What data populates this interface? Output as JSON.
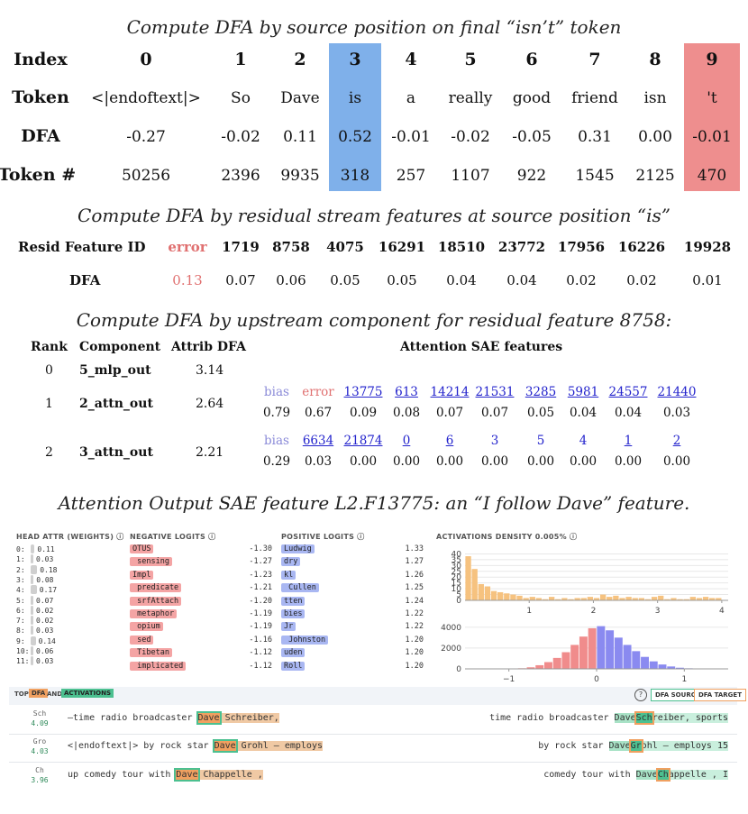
{
  "section1": {
    "caption": "Compute DFA by source position on final “isn’t” token",
    "row_labels": [
      "Index",
      "Token",
      "DFA",
      "Token #"
    ],
    "indices": [
      "0",
      "1",
      "2",
      "3",
      "4",
      "5",
      "6",
      "7",
      "8",
      "9"
    ],
    "tokens": [
      "<|endoftext|>",
      "So",
      "Dave",
      "is",
      "a",
      "really",
      "good",
      "friend",
      "isn",
      "'t"
    ],
    "dfa": [
      "-0.27",
      "-0.02",
      "0.11",
      "0.52",
      "-0.01",
      "-0.02",
      "-0.05",
      "0.31",
      "0.00",
      "-0.01"
    ],
    "token_ids": [
      "50256",
      "2396",
      "9935",
      "318",
      "257",
      "1107",
      "922",
      "1545",
      "2125",
      "470"
    ],
    "source_color": "#7fb0ea",
    "target_color": "#ee8e8e"
  },
  "section2": {
    "caption": "Compute DFA by residual stream features at source position “is”",
    "row1_label": "Resid Feature ID",
    "row2_label": "DFA",
    "feature_ids": [
      "error",
      "1719",
      "8758",
      "4075",
      "16291",
      "18510",
      "23772",
      "17956",
      "16226",
      "19928"
    ],
    "dfa": [
      "0.13",
      "0.07",
      "0.06",
      "0.05",
      "0.05",
      "0.04",
      "0.04",
      "0.02",
      "0.02",
      "0.01"
    ],
    "error_color": "#e07070"
  },
  "section3": {
    "caption": "Compute DFA by upstream component for residual feature 8758:",
    "headers": {
      "rank": "Rank",
      "component": "Component",
      "attrib": "Attrib DFA",
      "sae": "Attention SAE features"
    },
    "rows": [
      {
        "rank": "0",
        "component": "5_mlp_out",
        "attrib": "3.14"
      },
      {
        "rank": "1",
        "component": "2_attn_out",
        "attrib": "2.64"
      },
      {
        "rank": "2",
        "component": "3_attn_out",
        "attrib": "2.21"
      }
    ],
    "features_row1": {
      "ids": [
        "bias",
        "error",
        "13775",
        "613",
        "14214",
        "21531",
        "3285",
        "5981",
        "24557",
        "21440"
      ],
      "values": [
        "0.79",
        "0.67",
        "0.09",
        "0.08",
        "0.07",
        "0.07",
        "0.05",
        "0.04",
        "0.04",
        "0.03"
      ]
    },
    "features_row2": {
      "ids": [
        "bias",
        "6634",
        "21874",
        "0",
        "6",
        "3",
        "5",
        "4",
        "1",
        "2"
      ],
      "values": [
        "0.29",
        "0.03",
        "0.00",
        "0.00",
        "0.00",
        "0.00",
        "0.00",
        "0.00",
        "0.00",
        "0.00"
      ]
    }
  },
  "section4": {
    "caption": "Attention Output SAE feature L2.F13775: an “I follow Dave” feature."
  },
  "panel": {
    "head_attr_title": "HEAD ATTR (WEIGHTS) ⓘ",
    "heads": [
      {
        "label": "0:",
        "value": "0.11",
        "weight": 0.11
      },
      {
        "label": "1:",
        "value": "0.03",
        "weight": 0.03
      },
      {
        "label": "2:",
        "value": "0.18",
        "weight": 0.18
      },
      {
        "label": "3:",
        "value": "0.08",
        "weight": 0.08
      },
      {
        "label": "4:",
        "value": "0.17",
        "weight": 0.17
      },
      {
        "label": "5:",
        "value": "0.07",
        "weight": 0.07
      },
      {
        "label": "6:",
        "value": "0.02",
        "weight": 0.02
      },
      {
        "label": "7:",
        "value": "0.02",
        "weight": 0.02
      },
      {
        "label": "8:",
        "value": "0.03",
        "weight": 0.03
      },
      {
        "label": "9:",
        "value": "0.14",
        "weight": 0.14
      },
      {
        "label": "10:",
        "value": "0.06",
        "weight": 0.06
      },
      {
        "label": "11:",
        "value": "0.03",
        "weight": 0.03
      }
    ],
    "neg_title": "NEGATIVE LOGITS ⓘ",
    "neg_logits": [
      {
        "token": "OTUS",
        "value": "-1.30"
      },
      {
        "token": " sensing",
        "value": "-1.27"
      },
      {
        "token": "Impl",
        "value": "-1.23"
      },
      {
        "token": " predicate",
        "value": "-1.21"
      },
      {
        "token": " srfAttach",
        "value": "-1.20"
      },
      {
        "token": " metaphor",
        "value": "-1.19"
      },
      {
        "token": " opium",
        "value": "-1.19"
      },
      {
        "token": " sed",
        "value": "-1.16"
      },
      {
        "token": " Tibetan",
        "value": "-1.12"
      },
      {
        "token": " implicated",
        "value": "-1.12"
      }
    ],
    "pos_title": "POSITIVE LOGITS ⓘ",
    "pos_logits": [
      {
        "token": "Ludwig",
        "value": "1.33"
      },
      {
        "token": "dry",
        "value": "1.27"
      },
      {
        "token": "kl",
        "value": "1.26"
      },
      {
        "token": " Cullen",
        "value": "1.25"
      },
      {
        "token": "tten",
        "value": "1.24"
      },
      {
        "token": "bies",
        "value": "1.22"
      },
      {
        "token": "Jr",
        "value": "1.22"
      },
      {
        "token": " Johnston",
        "value": "1.20"
      },
      {
        "token": "uden",
        "value": "1.20"
      },
      {
        "token": "Roll",
        "value": "1.20"
      }
    ],
    "density_title": "ACTIVATIONS DENSITY 0.005% ⓘ",
    "top_label": "TOP",
    "dfa_tag": "DFA",
    "and_label": "AND",
    "activations_tag": "ACTIVATIONS",
    "dfa_source_btn": "DFA SOURCE",
    "dfa_target_btn": "DFA TARGET",
    "examples": [
      {
        "tok": "Sch",
        "act": "4.09",
        "left_pre": "—time radio broadcaster ",
        "left_hl": "Dave",
        "left_post": " Schreiber,",
        "right_pre": "time radio broadcaster ",
        "right_hl1": "Dave",
        "right_hl2": "Sch",
        "right_post": "reiber, sports"
      },
      {
        "tok": "Gro",
        "act": "4.03",
        "left_pre": "<|endoftext|> by rock star ",
        "left_hl": "Dave",
        "left_post": " Grohl — employs",
        "right_pre": "by rock star ",
        "right_hl1": "Dave",
        "right_hl2": "Gr",
        "right_post": "ohl — employs 15"
      },
      {
        "tok": "Ch",
        "act": "3.96",
        "left_pre": "up comedy tour with ",
        "left_hl": "Dave",
        "left_post": " Chappelle ,",
        "right_pre": "comedy tour with ",
        "right_hl1": "Dave",
        "right_hl2": "Ch",
        "right_post": "appelle , I"
      }
    ],
    "colors": {
      "negative": "#f4a4a4",
      "positive": "#a9b7f2",
      "density": "#f6c27f",
      "hist_neg": "#f08c8c",
      "hist_pos": "#8a8af0"
    }
  },
  "chart_data": [
    {
      "type": "bar",
      "title": "",
      "x": [
        0.05,
        0.15,
        0.25,
        0.35,
        0.45,
        0.55,
        0.65,
        0.75,
        0.85,
        0.95,
        1.05,
        1.15,
        1.25,
        1.35,
        1.45,
        1.55,
        1.65,
        1.75,
        1.85,
        1.95,
        2.05,
        2.15,
        2.25,
        2.35,
        2.45,
        2.55,
        2.65,
        2.75,
        2.85,
        2.95,
        3.05,
        3.15,
        3.25,
        3.35,
        3.45,
        3.55,
        3.65,
        3.75,
        3.85,
        3.95
      ],
      "values": [
        38,
        27,
        14,
        12,
        8,
        7,
        6,
        5,
        4,
        2,
        3,
        2,
        1,
        3,
        1,
        2,
        1,
        2,
        2,
        3,
        2,
        5,
        3,
        4,
        2,
        3,
        2,
        2,
        1,
        3,
        4,
        1,
        2,
        1,
        1,
        3,
        2,
        3,
        2,
        2
      ],
      "xlim": [
        0,
        4.1
      ],
      "ylim": [
        0,
        45
      ],
      "xticks": [
        "1",
        "2",
        "3",
        "4"
      ],
      "yticks": [
        "0",
        "5",
        "10",
        "15",
        "20",
        "25",
        "30",
        "35",
        "40"
      ]
    },
    {
      "type": "bar",
      "title": "",
      "x": [
        -0.95,
        -0.85,
        -0.75,
        -0.65,
        -0.55,
        -0.45,
        -0.35,
        -0.25,
        -0.15,
        -0.05,
        0.05,
        0.15,
        0.25,
        0.35,
        0.45,
        0.55,
        0.65,
        0.75,
        0.85,
        0.95,
        1.05,
        1.15,
        1.25,
        1.35,
        1.45
      ],
      "values": [
        20,
        60,
        150,
        350,
        650,
        1050,
        1600,
        2300,
        3100,
        3900,
        4100,
        3700,
        3000,
        2300,
        1700,
        1150,
        720,
        420,
        230,
        110,
        55,
        25,
        10,
        5,
        2
      ],
      "split_at": 0,
      "xlim": [
        -1.5,
        1.5
      ],
      "ylim": [
        0,
        4500
      ],
      "xticks": [
        "−1",
        "0",
        "1"
      ],
      "yticks": [
        "0",
        "2000",
        "4000"
      ]
    }
  ]
}
